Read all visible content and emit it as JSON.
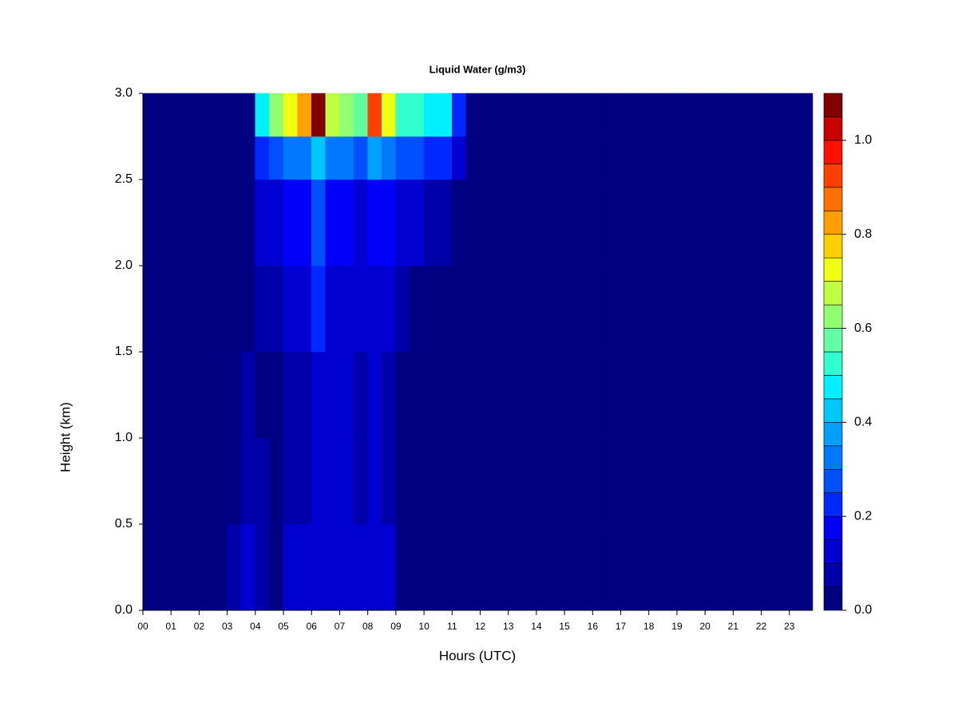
{
  "chart_data": {
    "type": "heatmap",
    "title": "Liquid Water (g/m3)",
    "xlabel": "Hours (UTC)",
    "ylabel": "Height (km)",
    "x_bins": [
      0,
      0.5,
      1,
      1.5,
      2,
      2.5,
      3,
      3.5,
      4,
      4.5,
      5,
      5.5,
      6,
      6.5,
      7,
      7.5,
      8,
      8.5,
      9,
      9.5,
      10,
      10.5,
      11,
      11.5,
      12,
      12.5,
      13,
      13.5,
      14,
      14.5,
      15,
      15.5,
      16,
      16.5,
      17,
      17.5,
      18,
      18.5,
      19,
      19.5,
      20,
      20.5,
      21,
      21.5,
      22,
      22.5,
      23,
      23.5,
      23.83
    ],
    "y_bins": [
      0,
      0.5,
      1,
      1.5,
      2,
      2.5,
      2.75,
      3
    ],
    "values": [
      [
        0,
        0,
        0,
        0,
        0,
        0,
        0.05,
        0.1,
        0.05,
        0.02,
        0.1,
        0.1,
        0.1,
        0.1,
        0.1,
        0.1,
        0.1,
        0.1,
        0.03,
        0,
        0,
        0,
        0,
        0,
        0,
        0,
        0,
        0,
        0,
        0,
        0,
        0,
        0,
        0,
        0,
        0,
        0,
        0,
        0,
        0,
        0,
        0,
        0,
        0,
        0,
        0,
        0,
        0
      ],
      [
        0,
        0,
        0,
        0,
        0,
        0,
        0.03,
        0.08,
        0.05,
        0.02,
        0.08,
        0.08,
        0.12,
        0.1,
        0.1,
        0.08,
        0.1,
        0.08,
        0.02,
        0,
        0,
        0,
        0,
        0,
        0,
        0,
        0,
        0,
        0,
        0,
        0,
        0,
        0,
        0,
        0,
        0,
        0,
        0,
        0,
        0,
        0,
        0,
        0,
        0,
        0,
        0,
        0,
        0
      ],
      [
        0,
        0,
        0,
        0,
        0,
        0,
        0.02,
        0.06,
        0.04,
        0.02,
        0.08,
        0.08,
        0.12,
        0.1,
        0.1,
        0.08,
        0.1,
        0.08,
        0.02,
        0,
        0,
        0,
        0,
        0,
        0,
        0,
        0,
        0,
        0,
        0,
        0,
        0,
        0,
        0,
        0,
        0,
        0,
        0,
        0,
        0,
        0,
        0,
        0,
        0,
        0,
        0,
        0,
        0
      ],
      [
        0,
        0,
        0,
        0,
        0,
        0,
        0.01,
        0.04,
        0.06,
        0.05,
        0.1,
        0.1,
        0.2,
        0.1,
        0.12,
        0.1,
        0.12,
        0.1,
        0.05,
        0.02,
        0,
        0,
        0,
        0,
        0,
        0,
        0,
        0,
        0,
        0,
        0,
        0,
        0,
        0,
        0,
        0,
        0,
        0,
        0,
        0,
        0,
        0,
        0,
        0,
        0,
        0,
        0,
        0
      ],
      [
        0,
        0,
        0,
        0,
        0,
        0,
        0,
        0.03,
        0.1,
        0.1,
        0.15,
        0.15,
        0.25,
        0.15,
        0.15,
        0.12,
        0.18,
        0.15,
        0.12,
        0.1,
        0.08,
        0.05,
        0.02,
        0,
        0,
        0,
        0,
        0,
        0,
        0,
        0,
        0,
        0,
        0,
        0,
        0,
        0,
        0,
        0,
        0,
        0,
        0,
        0,
        0,
        0,
        0,
        0,
        0
      ],
      [
        0,
        0,
        0,
        0,
        0,
        0,
        0,
        0,
        0.2,
        0.25,
        0.3,
        0.3,
        0.4,
        0.3,
        0.3,
        0.25,
        0.35,
        0.3,
        0.25,
        0.25,
        0.2,
        0.2,
        0.1,
        0,
        0,
        0,
        0,
        0,
        0,
        0,
        0,
        0,
        0,
        0,
        0,
        0,
        0,
        0,
        0,
        0,
        0,
        0,
        0,
        0,
        0,
        0,
        0,
        0
      ],
      [
        0,
        0,
        0,
        0,
        0,
        0,
        0,
        0,
        0.45,
        0.6,
        0.7,
        0.8,
        1.05,
        0.65,
        0.6,
        0.55,
        0.9,
        0.7,
        0.5,
        0.5,
        0.45,
        0.45,
        0.2,
        0,
        0,
        0,
        0,
        0,
        0,
        0,
        0,
        0,
        0,
        0,
        0,
        0,
        0,
        0,
        0,
        0,
        0,
        0,
        0,
        0,
        0,
        0,
        0,
        0
      ]
    ],
    "xlim": [
      0,
      23.83
    ],
    "ylim": [
      0,
      3
    ],
    "xticks": [
      {
        "value": 0,
        "label": "00"
      },
      {
        "value": 1,
        "label": "01"
      },
      {
        "value": 2,
        "label": "02"
      },
      {
        "value": 3,
        "label": "03"
      },
      {
        "value": 4,
        "label": "04"
      },
      {
        "value": 5,
        "label": "05"
      },
      {
        "value": 6,
        "label": "06"
      },
      {
        "value": 7,
        "label": "07"
      },
      {
        "value": 8,
        "label": "08"
      },
      {
        "value": 9,
        "label": "09"
      },
      {
        "value": 10,
        "label": "10"
      },
      {
        "value": 11,
        "label": "11"
      },
      {
        "value": 12,
        "label": "12"
      },
      {
        "value": 13,
        "label": "13"
      },
      {
        "value": 14,
        "label": "14"
      },
      {
        "value": 15,
        "label": "15"
      },
      {
        "value": 16,
        "label": "16"
      },
      {
        "value": 17,
        "label": "17"
      },
      {
        "value": 18,
        "label": "18"
      },
      {
        "value": 19,
        "label": "19"
      },
      {
        "value": 20,
        "label": "20"
      },
      {
        "value": 21,
        "label": "21"
      },
      {
        "value": 22,
        "label": "22"
      },
      {
        "value": 23,
        "label": "23"
      }
    ],
    "yticks": [
      {
        "value": 0,
        "label": "0.0"
      },
      {
        "value": 0.5,
        "label": "0.5"
      },
      {
        "value": 1,
        "label": "1.0"
      },
      {
        "value": 1.5,
        "label": "1.5"
      },
      {
        "value": 2,
        "label": "2.0"
      },
      {
        "value": 2.5,
        "label": "2.5"
      },
      {
        "value": 3,
        "label": "3.0"
      }
    ],
    "levels": [
      0,
      0.05,
      0.1,
      0.15,
      0.2,
      0.25,
      0.3,
      0.35,
      0.4,
      0.45,
      0.5,
      0.55,
      0.6,
      0.65,
      0.7,
      0.75,
      0.8,
      0.85,
      0.9,
      0.95,
      1,
      1.05,
      1.1
    ],
    "colors": [
      "#000080",
      "#0000a8",
      "#0000d0",
      "#0000f8",
      "#0028ff",
      "#0050ff",
      "#0078ff",
      "#00a0ff",
      "#00c8ff",
      "#00f0ff",
      "#30ffd0",
      "#60ffa0",
      "#90ff70",
      "#c0ff40",
      "#f0ff10",
      "#ffd000",
      "#ffa000",
      "#ff7000",
      "#ff4000",
      "#ff1000",
      "#c80000",
      "#800000"
    ],
    "colorbar_ticks": [
      {
        "value": 0,
        "label": "0.0"
      },
      {
        "value": 0.2,
        "label": "0.2"
      },
      {
        "value": 0.4,
        "label": "0.4"
      },
      {
        "value": 0.6,
        "label": "0.6"
      },
      {
        "value": 0.8,
        "label": "0.8"
      },
      {
        "value": 1,
        "label": "1.0"
      }
    ]
  }
}
